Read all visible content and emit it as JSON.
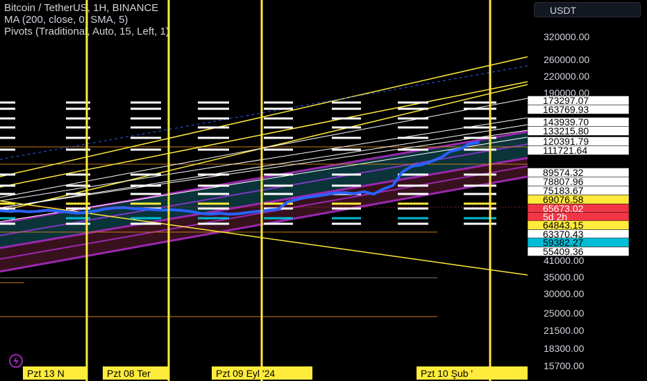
{
  "header": {
    "symbol_line": "Bitcoin / TetherUS, 1H, BINANCE",
    "ma_line": "MA (200, close, 0, SMA, 5)",
    "pivots_line": "Pivots (Traditional, Auto, 15, Left, 1)",
    "currency_button": "USDT"
  },
  "colors": {
    "background": "#000000",
    "price_line": "#2962ff",
    "channel_line": "#ffeb3b",
    "pivot_white": "#ffffff",
    "pivot_yellow": "#ffeb3b",
    "pivot_cyan": "#00bcd4",
    "band_purple": "#9c27b0",
    "band_teal_fill": "#0b3a3f",
    "band_red_fill": "#3d1420",
    "current_price": "#f23645"
  },
  "chart_data": {
    "type": "line",
    "title": "Bitcoin / TetherUS, 1H, BINANCE",
    "y_scale": "log",
    "y_axis_ticks": [
      320000,
      260000,
      220000,
      190000,
      41000,
      35000,
      30000,
      25000,
      21500,
      18300,
      15700
    ],
    "price_labels": [
      {
        "text": "173297.07",
        "kind": "plain"
      },
      {
        "text": "163769.93",
        "kind": "plain"
      },
      {
        "text": "143939.70",
        "kind": "plain"
      },
      {
        "text": "133215.80",
        "kind": "plain"
      },
      {
        "text": "120391.79",
        "kind": "plain"
      },
      {
        "text": "111721.64",
        "kind": "plain"
      },
      {
        "text": "89574.32",
        "kind": "plain"
      },
      {
        "text": "78807.96",
        "kind": "plain"
      },
      {
        "text": "75183.67",
        "kind": "plain"
      },
      {
        "text": "69076.58",
        "kind": "yellow"
      },
      {
        "text": "65673.02",
        "kind": "red"
      },
      {
        "text": "5d 2h",
        "kind": "red"
      },
      {
        "text": "64843.15",
        "kind": "yellow"
      },
      {
        "text": "63370.43",
        "kind": "plain"
      },
      {
        "text": "59382.27",
        "kind": "cyan"
      },
      {
        "text": "55409.36",
        "kind": "plain"
      }
    ],
    "x_labels": [
      "Pzt 13 N",
      "Pzt 08 Ter",
      "Pzt 09 Eyl '24",
      "Pzt 10 Şub '"
    ],
    "current_price": 65673.02,
    "series": [
      {
        "name": "BTCUSDT",
        "values": [
          64200,
          63800,
          64100,
          63600,
          63900,
          64500,
          64000,
          63500,
          62800,
          63200,
          64100,
          65300,
          65900,
          66100,
          65400,
          65200,
          64900,
          64600,
          64800,
          64400,
          63700,
          62600,
          62300,
          62700,
          62200,
          62500,
          63300,
          63900,
          64600,
          65000,
          69500,
          71200,
          72600,
          73400,
          74400,
          75600,
          75800,
          75100,
          76400,
          74800,
          78300,
          80900,
          91700,
          96500,
          97800,
          100900,
          104300,
          110600,
          112800,
          118500,
          120100
        ]
      }
    ]
  }
}
